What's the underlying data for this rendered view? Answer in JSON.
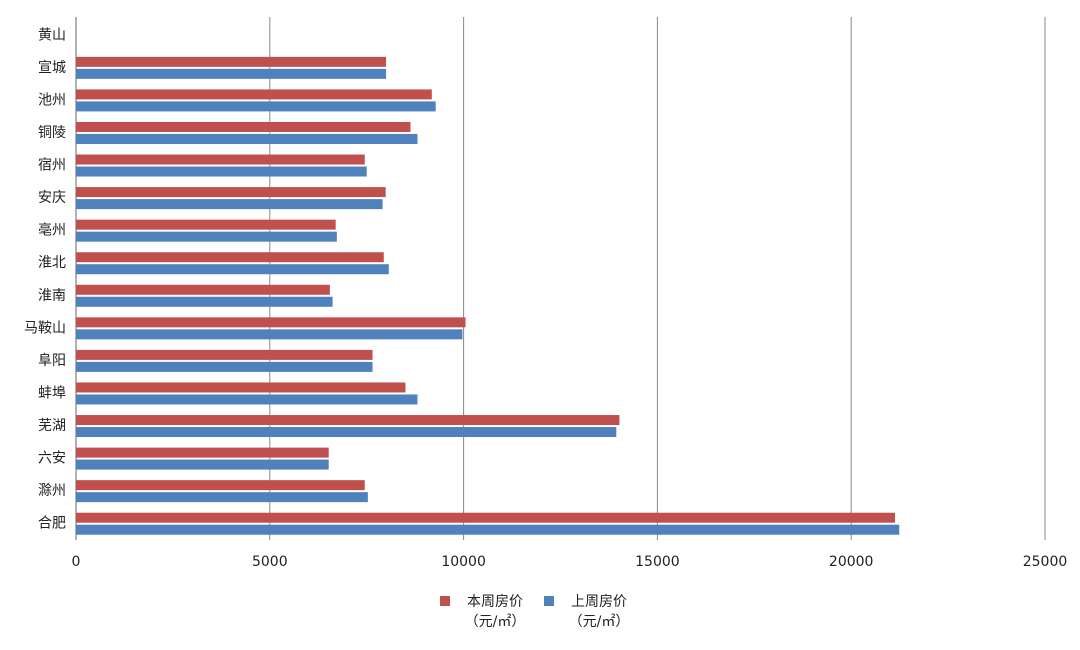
{
  "chart_data": {
    "type": "hbar",
    "categories": [
      "黄山",
      "宣城",
      "池州",
      "铜陵",
      "宿州",
      "安庆",
      "亳州",
      "淮北",
      "淮南",
      "马鞍山",
      "阜阳",
      "蚌埠",
      "芜湖",
      "六安",
      "滁州",
      "合肥"
    ],
    "series": [
      {
        "name": "本周房价（元/㎡）",
        "color": "#c0504d",
        "values": [
          null,
          8000,
          9180,
          8630,
          7450,
          7990,
          6700,
          7940,
          6550,
          10050,
          7650,
          8500,
          14020,
          6520,
          7450,
          21130
        ]
      },
      {
        "name": "上周房价（元/㎡）",
        "color": "#4f81bd",
        "values": [
          null,
          8000,
          9280,
          8810,
          7500,
          7910,
          6730,
          8070,
          6620,
          9970,
          7650,
          8810,
          13940,
          6520,
          7530,
          21240
        ]
      }
    ],
    "xlim": [
      0,
      25000
    ],
    "xticks": [
      0,
      5000,
      10000,
      15000,
      20000,
      25000
    ],
    "grid": true
  }
}
